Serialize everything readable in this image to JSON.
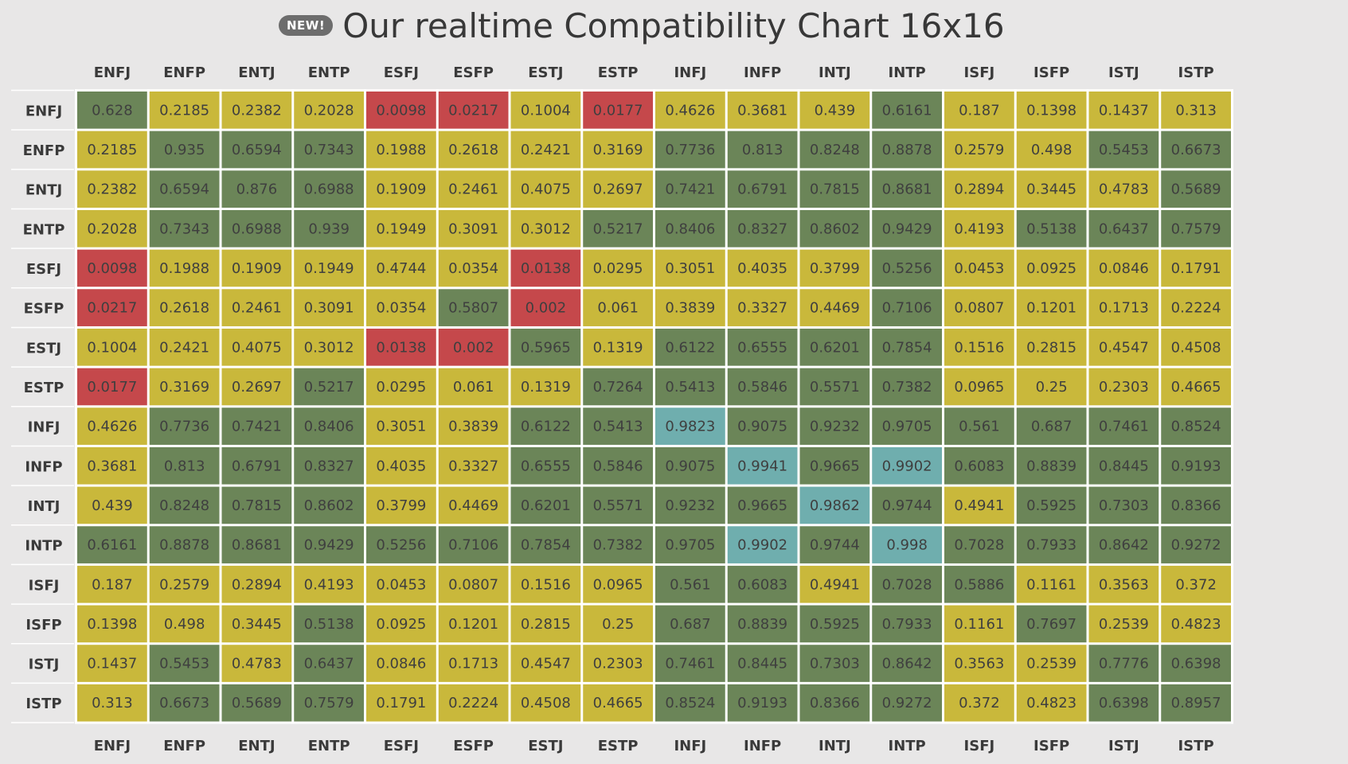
{
  "header": {
    "badge": "NEW!",
    "title": "Our realtime Compatibility Chart 16x16"
  },
  "colors": {
    "background": "#e8e7e7",
    "low": "#c5484b",
    "mid": "#c9b83b",
    "high": "#6b8558",
    "top": "#6faeae",
    "grid": "#ffffff"
  },
  "chart_data": {
    "type": "heatmap",
    "title": "Our realtime Compatibility Chart 16x16",
    "x_labels": [
      "ENFJ",
      "ENFP",
      "ENTJ",
      "ENTP",
      "ESFJ",
      "ESFP",
      "ESTJ",
      "ESTP",
      "INFJ",
      "INFP",
      "INTJ",
      "INTP",
      "ISFJ",
      "ISFP",
      "ISTJ",
      "ISTP"
    ],
    "y_labels": [
      "ENFJ",
      "ENFP",
      "ENTJ",
      "ENTP",
      "ESFJ",
      "ESFP",
      "ESTJ",
      "ESTP",
      "INFJ",
      "INFP",
      "INTJ",
      "INTP",
      "ISFJ",
      "ISFP",
      "ISTJ",
      "ISTP"
    ],
    "values": [
      [
        "0.628",
        "0.2185",
        "0.2382",
        "0.2028",
        "0.0098",
        "0.0217",
        "0.1004",
        "0.0177",
        "0.4626",
        "0.3681",
        "0.439",
        "0.6161",
        "0.187",
        "0.1398",
        "0.1437",
        "0.313"
      ],
      [
        "0.2185",
        "0.935",
        "0.6594",
        "0.7343",
        "0.1988",
        "0.2618",
        "0.2421",
        "0.3169",
        "0.7736",
        "0.813",
        "0.8248",
        "0.8878",
        "0.2579",
        "0.498",
        "0.5453",
        "0.6673"
      ],
      [
        "0.2382",
        "0.6594",
        "0.876",
        "0.6988",
        "0.1909",
        "0.2461",
        "0.4075",
        "0.2697",
        "0.7421",
        "0.6791",
        "0.7815",
        "0.8681",
        "0.2894",
        "0.3445",
        "0.4783",
        "0.5689"
      ],
      [
        "0.2028",
        "0.7343",
        "0.6988",
        "0.939",
        "0.1949",
        "0.3091",
        "0.3012",
        "0.5217",
        "0.8406",
        "0.8327",
        "0.8602",
        "0.9429",
        "0.4193",
        "0.5138",
        "0.6437",
        "0.7579"
      ],
      [
        "0.0098",
        "0.1988",
        "0.1909",
        "0.1949",
        "0.4744",
        "0.0354",
        "0.0138",
        "0.0295",
        "0.3051",
        "0.4035",
        "0.3799",
        "0.5256",
        "0.0453",
        "0.0925",
        "0.0846",
        "0.1791"
      ],
      [
        "0.0217",
        "0.2618",
        "0.2461",
        "0.3091",
        "0.0354",
        "0.5807",
        "0.002",
        "0.061",
        "0.3839",
        "0.3327",
        "0.4469",
        "0.7106",
        "0.0807",
        "0.1201",
        "0.1713",
        "0.2224"
      ],
      [
        "0.1004",
        "0.2421",
        "0.4075",
        "0.3012",
        "0.0138",
        "0.002",
        "0.5965",
        "0.1319",
        "0.6122",
        "0.6555",
        "0.6201",
        "0.7854",
        "0.1516",
        "0.2815",
        "0.4547",
        "0.4508"
      ],
      [
        "0.0177",
        "0.3169",
        "0.2697",
        "0.5217",
        "0.0295",
        "0.061",
        "0.1319",
        "0.7264",
        "0.5413",
        "0.5846",
        "0.5571",
        "0.7382",
        "0.0965",
        "0.25",
        "0.2303",
        "0.4665"
      ],
      [
        "0.4626",
        "0.7736",
        "0.7421",
        "0.8406",
        "0.3051",
        "0.3839",
        "0.6122",
        "0.5413",
        "0.9823",
        "0.9075",
        "0.9232",
        "0.9705",
        "0.561",
        "0.687",
        "0.7461",
        "0.8524"
      ],
      [
        "0.3681",
        "0.813",
        "0.6791",
        "0.8327",
        "0.4035",
        "0.3327",
        "0.6555",
        "0.5846",
        "0.9075",
        "0.9941",
        "0.9665",
        "0.9902",
        "0.6083",
        "0.8839",
        "0.8445",
        "0.9193"
      ],
      [
        "0.439",
        "0.8248",
        "0.7815",
        "0.8602",
        "0.3799",
        "0.4469",
        "0.6201",
        "0.5571",
        "0.9232",
        "0.9665",
        "0.9862",
        "0.9744",
        "0.4941",
        "0.5925",
        "0.7303",
        "0.8366"
      ],
      [
        "0.6161",
        "0.8878",
        "0.8681",
        "0.9429",
        "0.5256",
        "0.7106",
        "0.7854",
        "0.7382",
        "0.9705",
        "0.9902",
        "0.9744",
        "0.998",
        "0.7028",
        "0.7933",
        "0.8642",
        "0.9272"
      ],
      [
        "0.187",
        "0.2579",
        "0.2894",
        "0.4193",
        "0.0453",
        "0.0807",
        "0.1516",
        "0.0965",
        "0.561",
        "0.6083",
        "0.4941",
        "0.7028",
        "0.5886",
        "0.1161",
        "0.3563",
        "0.372"
      ],
      [
        "0.1398",
        "0.498",
        "0.3445",
        "0.5138",
        "0.0925",
        "0.1201",
        "0.2815",
        "0.25",
        "0.687",
        "0.8839",
        "0.5925",
        "0.7933",
        "0.1161",
        "0.7697",
        "0.2539",
        "0.4823"
      ],
      [
        "0.1437",
        "0.5453",
        "0.4783",
        "0.6437",
        "0.0846",
        "0.1713",
        "0.4547",
        "0.2303",
        "0.7461",
        "0.8445",
        "0.7303",
        "0.8642",
        "0.3563",
        "0.2539",
        "0.7776",
        "0.6398"
      ],
      [
        "0.313",
        "0.6673",
        "0.5689",
        "0.7579",
        "0.1791",
        "0.2224",
        "0.4508",
        "0.4665",
        "0.8524",
        "0.9193",
        "0.8366",
        "0.9272",
        "0.372",
        "0.4823",
        "0.6398",
        "0.8957"
      ]
    ],
    "color_scale": [
      {
        "min": 0,
        "max": 0.025,
        "color": "low"
      },
      {
        "min": 0.025,
        "max": 0.5,
        "color": "mid"
      },
      {
        "min": 0.5,
        "max": 0.98,
        "color": "high"
      },
      {
        "min": 0.98,
        "max": 1.0,
        "color": "top"
      }
    ]
  }
}
